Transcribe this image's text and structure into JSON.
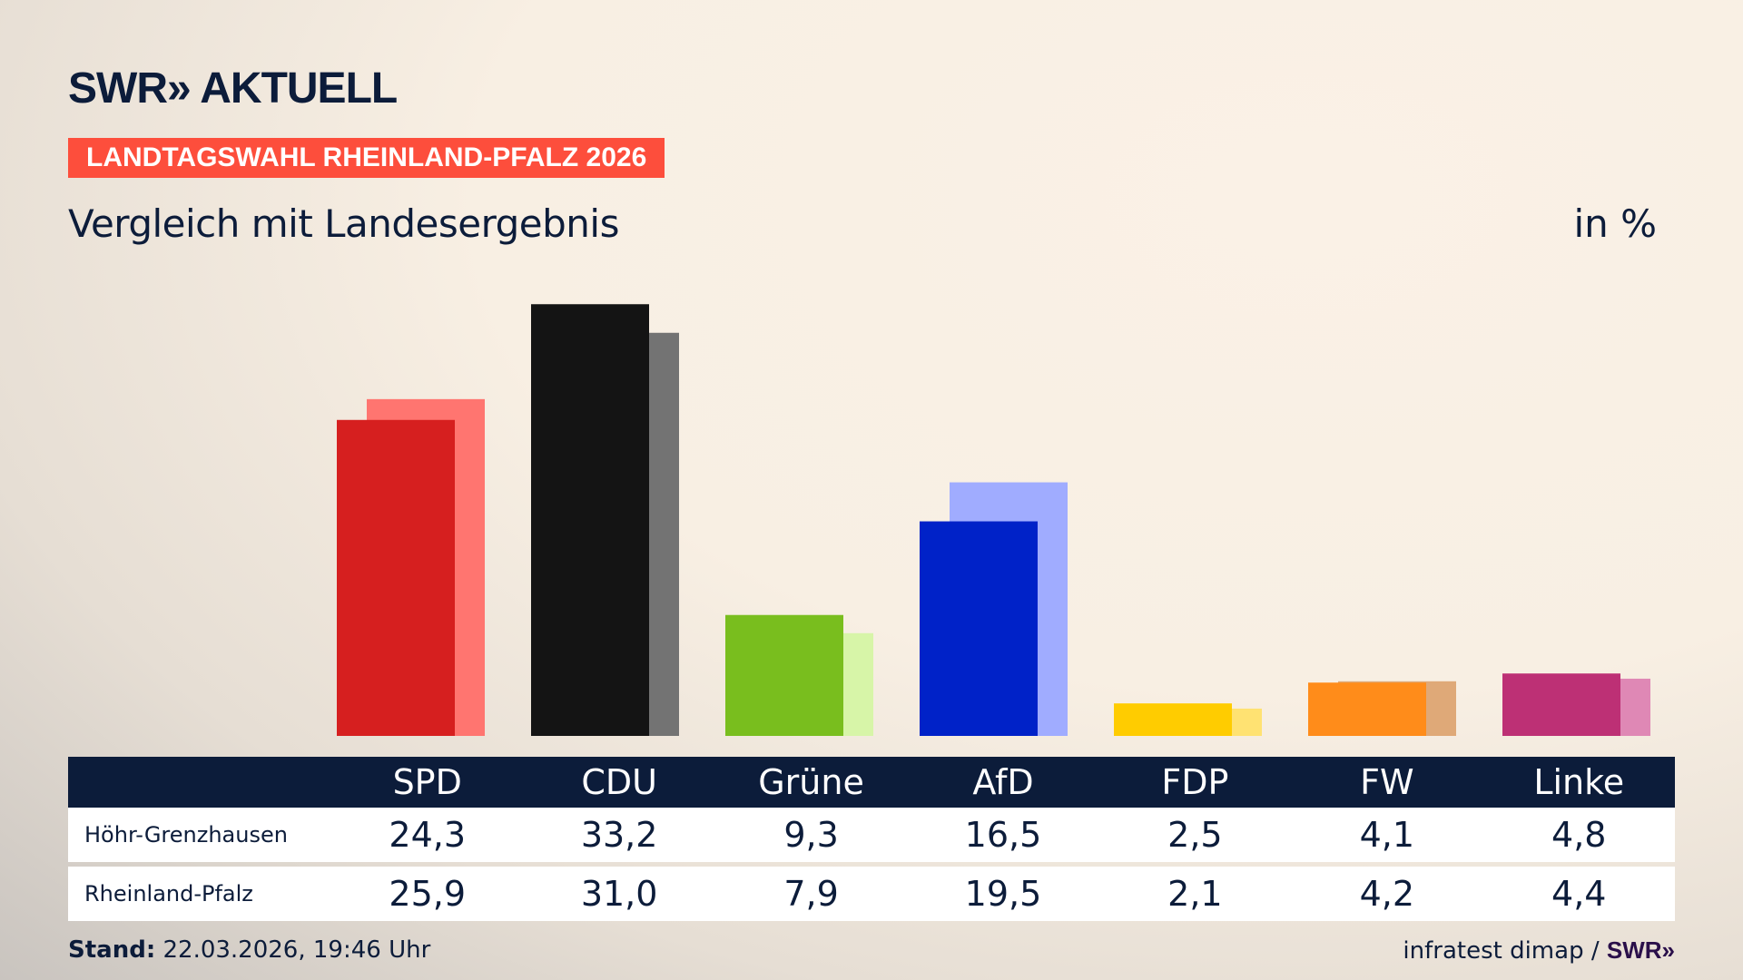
{
  "header": {
    "logo": "SWR» AKTUELL",
    "badge": "LANDTAGSWAHL RHEINLAND-PFALZ 2026",
    "subtitle": "Vergleich mit Landesergebnis",
    "unit": "in %"
  },
  "chart_data": {
    "type": "bar",
    "title": "Vergleich mit Landesergebnis",
    "ylabel": "in %",
    "categories": [
      "SPD",
      "CDU",
      "Grüne",
      "AfD",
      "FDP",
      "FW",
      "Linke"
    ],
    "series": [
      {
        "name": "Höhr-Grenzhausen",
        "values": [
          "24,3",
          "33,2",
          "9,3",
          "16,5",
          "2,5",
          "4,1",
          "4,8"
        ],
        "numeric": [
          24.3,
          33.2,
          9.3,
          16.5,
          2.5,
          4.1,
          4.8
        ]
      },
      {
        "name": "Rheinland-Pfalz",
        "values": [
          "25,9",
          "31,0",
          "7,9",
          "19,5",
          "2,1",
          "4,2",
          "4,4"
        ],
        "numeric": [
          25.9,
          31.0,
          7.9,
          19.5,
          2.1,
          4.2,
          4.4
        ]
      }
    ],
    "colors_local": [
      "#d61f1f",
      "#141414",
      "#79be1e",
      "#0022c8",
      "#ffcc00",
      "#ff8c1a",
      "#bd3075"
    ],
    "colors_state": [
      "#ff7570",
      "#737373",
      "#d7f5a8",
      "#a0acff",
      "#ffe272",
      "#dfa978",
      "#df88b5"
    ],
    "ylim": [
      0,
      35
    ]
  },
  "footer": {
    "stand_label": "Stand:",
    "stand_value": "22.03.2026, 19:46 Uhr",
    "source": "infratest dimap /",
    "source_logo": "SWR»"
  }
}
